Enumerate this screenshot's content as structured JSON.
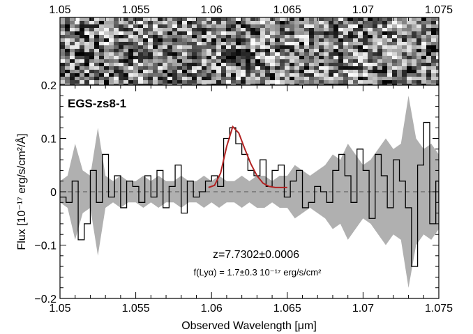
{
  "chart_data": {
    "type": "line",
    "title": "EGS-zs8-1",
    "xlabel": "Observed Wavelength [μm]",
    "ylabel": "Flux [10⁻¹⁷ erg/s/cm²/Å]",
    "xlim": [
      1.05,
      1.075
    ],
    "ylim": [
      -0.2,
      0.2
    ],
    "xticks": [
      "1.05",
      "1.055",
      "1.06",
      "1.065",
      "1.07",
      "1.075"
    ],
    "yticks": [
      "−0.2",
      "−0.1",
      "0",
      "0.1",
      "0.2"
    ],
    "top_xticks": [
      "1.05",
      "1.055",
      "1.06",
      "1.065",
      "1.07",
      "1.075"
    ],
    "annotations": {
      "redshift": "z=7.7302±0.0006",
      "line_flux": "f(Lyα) = 1.7±0.3 10⁻¹⁷ erg/s/cm²"
    },
    "zero_line": 0,
    "colors": {
      "spectrum": "#000000",
      "noise": "#b0b0b0",
      "fit": "#b22222",
      "zero_line": "#555555"
    },
    "series": [
      {
        "x": [
          1.05,
          1.0504,
          1.0508,
          1.0512,
          1.0516,
          1.052,
          1.0524,
          1.0528,
          1.0532,
          1.0536,
          1.054,
          1.0544,
          1.0548,
          1.0552,
          1.0556,
          1.056,
          1.0564,
          1.0568,
          1.0572,
          1.0576,
          1.058,
          1.0584,
          1.0588,
          1.0592,
          1.0596,
          1.06,
          1.0604,
          1.0608,
          1.0612,
          1.0616,
          1.062,
          1.0624,
          1.0628,
          1.0632,
          1.0636,
          1.064,
          1.0644,
          1.0648,
          1.0652,
          1.0656,
          1.066,
          1.0664,
          1.0668,
          1.0672,
          1.0676,
          1.068,
          1.0684,
          1.0688,
          1.0692,
          1.0696,
          1.07,
          1.0704,
          1.0708,
          1.0712,
          1.0716,
          1.072,
          1.0724,
          1.0728,
          1.0732,
          1.0736,
          1.074,
          1.0744,
          1.0748,
          1.075
        ],
        "values": [
          -0.01,
          -0.02,
          0.02,
          -0.09,
          -0.06,
          0.04,
          -0.02,
          0.07,
          -0.01,
          0.03,
          -0.03,
          0.02,
          0.01,
          -0.02,
          0.03,
          -0.01,
          0.04,
          -0.03,
          0.01,
          0.05,
          -0.04,
          0.02,
          -0.01,
          0.0,
          0.02,
          0.03,
          0.01,
          0.1,
          0.12,
          0.09,
          0.07,
          0.04,
          0.03,
          0.06,
          0.01,
          0.04,
          0.05,
          -0.01,
          0.02,
          0.04,
          -0.03,
          -0.02,
          0.01,
          0.0,
          -0.02,
          0.04,
          0.07,
          0.03,
          -0.02,
          0.08,
          0.04,
          -0.05,
          0.07,
          0.03,
          -0.03,
          0.06,
          0.02,
          -0.03,
          -0.14,
          0.05,
          0.13,
          -0.06,
          0.02,
          -0.02
        ]
      },
      {
        "x": [
          1.05,
          1.0505,
          1.051,
          1.0515,
          1.052,
          1.0525,
          1.053,
          1.0535,
          1.054,
          1.0545,
          1.055,
          1.0555,
          1.056,
          1.0565,
          1.057,
          1.0575,
          1.058,
          1.0585,
          1.059,
          1.0595,
          1.06,
          1.0605,
          1.061,
          1.0615,
          1.062,
          1.0625,
          1.063,
          1.0635,
          1.064,
          1.0645,
          1.065,
          1.0655,
          1.066,
          1.0665,
          1.067,
          1.0675,
          1.068,
          1.0685,
          1.069,
          1.0695,
          1.07,
          1.0705,
          1.071,
          1.0715,
          1.072,
          1.0725,
          1.073,
          1.0735,
          1.074,
          1.0745,
          1.075
        ],
        "values": [
          0.02,
          0.03,
          0.09,
          0.04,
          0.03,
          0.12,
          0.03,
          0.02,
          0.03,
          0.02,
          0.02,
          0.03,
          0.02,
          0.03,
          0.02,
          0.02,
          0.03,
          0.02,
          0.02,
          0.03,
          0.02,
          0.03,
          0.02,
          0.02,
          0.03,
          0.02,
          0.03,
          0.03,
          0.02,
          0.03,
          0.03,
          0.05,
          0.04,
          0.03,
          0.04,
          0.05,
          0.07,
          0.06,
          0.09,
          0.07,
          0.05,
          0.06,
          0.08,
          0.1,
          0.08,
          0.09,
          0.18,
          0.1,
          0.08,
          0.09,
          0.07
        ]
      },
      {
        "x": [
          1.0598,
          1.0602,
          1.0606,
          1.061,
          1.0614,
          1.0618,
          1.0622,
          1.0626,
          1.063,
          1.0634,
          1.0638,
          1.0642,
          1.0646,
          1.065
        ],
        "values": [
          0.008,
          0.012,
          0.035,
          0.085,
          0.122,
          0.11,
          0.08,
          0.052,
          0.03,
          0.016,
          0.01,
          0.008,
          0.008,
          0.008
        ]
      }
    ]
  }
}
